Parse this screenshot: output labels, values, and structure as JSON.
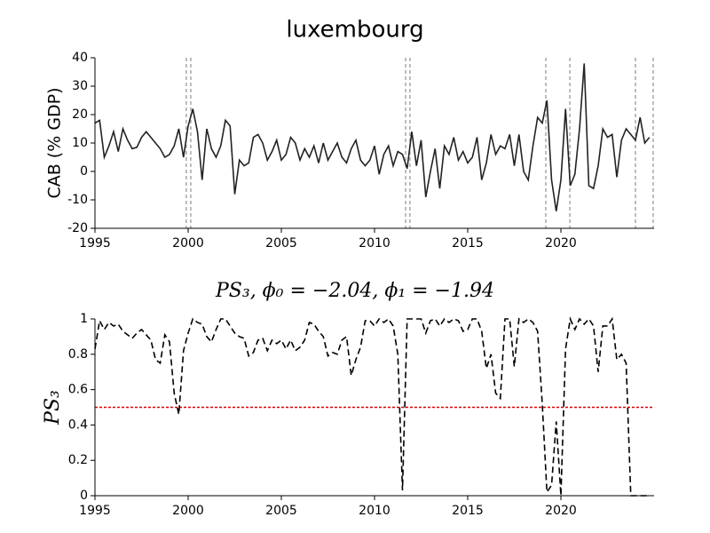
{
  "chart_data": [
    {
      "type": "line",
      "title": "luxembourg",
      "ylabel": "CAB (% GDP)",
      "x": [
        1995,
        1995.25,
        1995.5,
        1995.75,
        1996,
        1996.25,
        1996.5,
        1996.75,
        1997,
        1997.25,
        1997.5,
        1997.75,
        1998,
        1998.25,
        1998.5,
        1998.75,
        1999,
        1999.25,
        1999.5,
        1999.75,
        2000,
        2000.25,
        2000.5,
        2000.75,
        2001,
        2001.25,
        2001.5,
        2001.75,
        2002,
        2002.25,
        2002.5,
        2002.75,
        2003,
        2003.25,
        2003.5,
        2003.75,
        2004,
        2004.25,
        2004.5,
        2004.75,
        2005,
        2005.25,
        2005.5,
        2005.75,
        2006,
        2006.25,
        2006.5,
        2006.75,
        2007,
        2007.25,
        2007.5,
        2007.75,
        2008,
        2008.25,
        2008.5,
        2008.75,
        2009,
        2009.25,
        2009.5,
        2009.75,
        2010,
        2010.25,
        2010.5,
        2010.75,
        2011,
        2011.25,
        2011.5,
        2011.75,
        2012,
        2012.25,
        2012.5,
        2012.75,
        2013,
        2013.25,
        2013.5,
        2013.75,
        2014,
        2014.25,
        2014.5,
        2014.75,
        2015,
        2015.25,
        2015.5,
        2015.75,
        2016,
        2016.25,
        2016.5,
        2016.75,
        2017,
        2017.25,
        2017.5,
        2017.75,
        2018,
        2018.25,
        2018.5,
        2018.75,
        2019,
        2019.25,
        2019.5,
        2019.75,
        2020,
        2020.25,
        2020.5,
        2020.75,
        2021,
        2021.25,
        2021.5,
        2021.75,
        2022,
        2022.25,
        2022.5,
        2022.75,
        2023,
        2023.25,
        2023.5,
        2023.75,
        2024,
        2024.25,
        2024.5,
        2024.75
      ],
      "series": [
        {
          "color": "#222222",
          "values": [
            17,
            18,
            5,
            9,
            14,
            7,
            15,
            11,
            8,
            8.5,
            12,
            14,
            12,
            10,
            8,
            5,
            6,
            9,
            15,
            5,
            16,
            22,
            14,
            -3,
            15,
            8,
            5,
            9,
            18,
            16,
            -8,
            4,
            2,
            3,
            12,
            13,
            10,
            4,
            7,
            11,
            4,
            6,
            12,
            10,
            4,
            8,
            5,
            9,
            3,
            10,
            4,
            7,
            10,
            5,
            3,
            8,
            11,
            4,
            2,
            4,
            9,
            -1,
            6,
            9,
            2,
            7,
            6,
            1,
            14,
            2,
            11,
            -9,
            0,
            8,
            -6,
            9,
            6,
            12,
            4,
            7,
            3,
            5,
            12,
            -3,
            3,
            13,
            6,
            9,
            8,
            13,
            2,
            13,
            0,
            -3,
            9,
            19,
            17,
            25,
            -3,
            -14,
            -3,
            22,
            -5,
            -1,
            15,
            38,
            -5,
            -6,
            2,
            15,
            12,
            13,
            -2,
            11,
            15,
            13,
            11,
            19,
            10,
            12
          ]
        }
      ],
      "xlim": [
        1995,
        2025
      ],
      "ylim": [
        -20,
        40
      ],
      "xticks": [
        1995,
        2000,
        2005,
        2010,
        2015,
        2020
      ],
      "yticks": [
        -20,
        -10,
        0,
        10,
        20,
        30,
        40
      ],
      "vlines": [
        1999.9,
        2000.14,
        2011.67,
        2011.9,
        2019.19,
        2020.48,
        2024.0,
        2024.95
      ],
      "vline_color": "#999999"
    },
    {
      "type": "line",
      "title": "PS₃, ϕ₀ = −2.04, ϕ₁ = −1.94",
      "ylabel": "PS₃",
      "x": [
        1995,
        1995.25,
        1995.5,
        1995.75,
        1996,
        1996.25,
        1996.5,
        1996.75,
        1997,
        1997.25,
        1997.5,
        1997.75,
        1998,
        1998.25,
        1998.5,
        1998.75,
        1999,
        1999.25,
        1999.5,
        1999.75,
        2000,
        2000.25,
        2000.5,
        2000.75,
        2001,
        2001.25,
        2001.5,
        2001.75,
        2002,
        2002.25,
        2002.5,
        2002.75,
        2003,
        2003.25,
        2003.5,
        2003.75,
        2004,
        2004.25,
        2004.5,
        2004.75,
        2005,
        2005.25,
        2005.5,
        2005.75,
        2006,
        2006.25,
        2006.5,
        2006.75,
        2007,
        2007.25,
        2007.5,
        2007.75,
        2008,
        2008.25,
        2008.5,
        2008.75,
        2009,
        2009.25,
        2009.5,
        2009.75,
        2010,
        2010.25,
        2010.5,
        2010.75,
        2011,
        2011.25,
        2011.5,
        2011.75,
        2012,
        2012.25,
        2012.5,
        2012.75,
        2013,
        2013.25,
        2013.5,
        2013.75,
        2014,
        2014.25,
        2014.5,
        2014.75,
        2015,
        2015.25,
        2015.5,
        2015.75,
        2016,
        2016.25,
        2016.5,
        2016.75,
        2017,
        2017.25,
        2017.5,
        2017.75,
        2018,
        2018.25,
        2018.5,
        2018.75,
        2019,
        2019.25,
        2019.5,
        2019.75,
        2020,
        2020.25,
        2020.5,
        2020.75,
        2021,
        2021.25,
        2021.5,
        2021.75,
        2022,
        2022.25,
        2022.5,
        2022.75,
        2023,
        2023.25,
        2023.5,
        2023.75,
        2024,
        2024.25,
        2024.5,
        2024.75
      ],
      "series": [
        {
          "color": "#000000",
          "dashed": true,
          "values": [
            0.83,
            0.99,
            0.94,
            0.98,
            0.96,
            0.97,
            0.93,
            0.91,
            0.89,
            0.92,
            0.94,
            0.91,
            0.88,
            0.77,
            0.75,
            0.91,
            0.87,
            0.58,
            0.46,
            0.82,
            0.92,
            1.0,
            0.98,
            0.97,
            0.9,
            0.87,
            0.94,
            1.0,
            1.0,
            0.96,
            0.92,
            0.9,
            0.89,
            0.79,
            0.81,
            0.88,
            0.89,
            0.82,
            0.88,
            0.86,
            0.88,
            0.83,
            0.88,
            0.82,
            0.84,
            0.88,
            0.98,
            0.97,
            0.93,
            0.9,
            0.79,
            0.81,
            0.8,
            0.88,
            0.9,
            0.68,
            0.77,
            0.84,
            0.99,
            0.99,
            0.96,
            1.0,
            0.98,
            1.0,
            0.96,
            0.8,
            0.03,
            1.0,
            1.0,
            1.0,
            1.0,
            0.92,
            0.99,
            1.0,
            0.96,
            1.0,
            0.98,
            1.0,
            0.99,
            0.93,
            0.94,
            1.0,
            1.0,
            0.93,
            0.72,
            0.8,
            0.58,
            0.55,
            1.0,
            1.0,
            0.73,
            1.0,
            0.98,
            1.0,
            0.98,
            0.93,
            0.52,
            0.02,
            0.06,
            0.42,
            0.0,
            0.83,
            1.0,
            0.94,
            1.0,
            0.97,
            1.0,
            0.96,
            0.7,
            0.96,
            0.96,
            1.0,
            0.77,
            0.8,
            0.75,
            0.0,
            0.0,
            0.0,
            0.0,
            0.0
          ]
        }
      ],
      "xlim": [
        1995,
        2025
      ],
      "ylim": [
        0,
        1
      ],
      "xticks": [
        1995,
        2000,
        2005,
        2010,
        2015,
        2020
      ],
      "yticks": [
        0,
        0.2,
        0.4,
        0.6,
        0.8,
        1
      ],
      "threshold": 0.5,
      "threshold_color": "#dd0000"
    }
  ]
}
